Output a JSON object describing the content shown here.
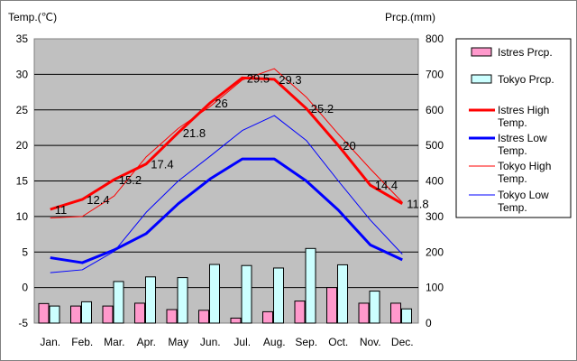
{
  "chart_data": {
    "type": "bar+line",
    "left_axis_label": "Temp.(℃)",
    "right_axis_label": "Prcp.(mm)",
    "categories": [
      "Jan.",
      "Feb.",
      "Mar.",
      "Apr.",
      "May",
      "Jun.",
      "Jul.",
      "Aug.",
      "Sep.",
      "Oct.",
      "Nov.",
      "Dec."
    ],
    "y_left_range": [
      -5,
      35
    ],
    "y_left_ticks": [
      "-5",
      "0",
      "5",
      "10",
      "15",
      "20",
      "25",
      "30",
      "35"
    ],
    "y_right_range": [
      0,
      800
    ],
    "y_right_ticks": [
      "0",
      "100",
      "200",
      "300",
      "400",
      "500",
      "600",
      "700",
      "800"
    ],
    "grid": true,
    "legend_position": "right",
    "bar_series": [
      {
        "name": "Istres Prcp.",
        "color": "#ff99cc",
        "values": [
          55,
          48,
          48,
          56,
          38,
          36,
          14,
          32,
          62,
          100,
          56,
          56
        ]
      },
      {
        "name": "Tokyo Prcp.",
        "color": "#ccffff",
        "values": [
          48,
          60,
          117,
          130,
          128,
          165,
          162,
          155,
          210,
          164,
          90,
          40
        ]
      }
    ],
    "line_series": [
      {
        "name": "Istres High Temp.",
        "color": "#ff0000",
        "width": 3,
        "values": [
          11,
          12.4,
          15.2,
          17.4,
          21.8,
          26,
          29.5,
          29.3,
          25.2,
          20,
          14.4,
          11.8
        ]
      },
      {
        "name": "Istres Low Temp.",
        "color": "#0000ff",
        "width": 3,
        "values": [
          4.2,
          3.5,
          5.3,
          7.6,
          11.8,
          15.3,
          18.1,
          18.1,
          15,
          10.9,
          6,
          3.9
        ]
      },
      {
        "name": "Tokyo High Temp.",
        "color": "#ff0000",
        "width": 1,
        "values": [
          9.8,
          10,
          12.9,
          18.4,
          22.4,
          25.5,
          29.2,
          30.8,
          26.8,
          21.6,
          16.7,
          12
        ]
      },
      {
        "name": "Tokyo Low Temp.",
        "color": "#0000ff",
        "width": 1,
        "values": [
          2.1,
          2.5,
          5.1,
          10.6,
          15,
          18.5,
          22.1,
          24.2,
          20.7,
          15,
          9.5,
          4.7
        ]
      }
    ],
    "data_labels": [
      "11",
      "12.4",
      "15.2",
      "17.4",
      "21.8",
      "26",
      "29.5",
      "29.3",
      "25.2",
      "20",
      "14.4",
      "11.8"
    ]
  }
}
